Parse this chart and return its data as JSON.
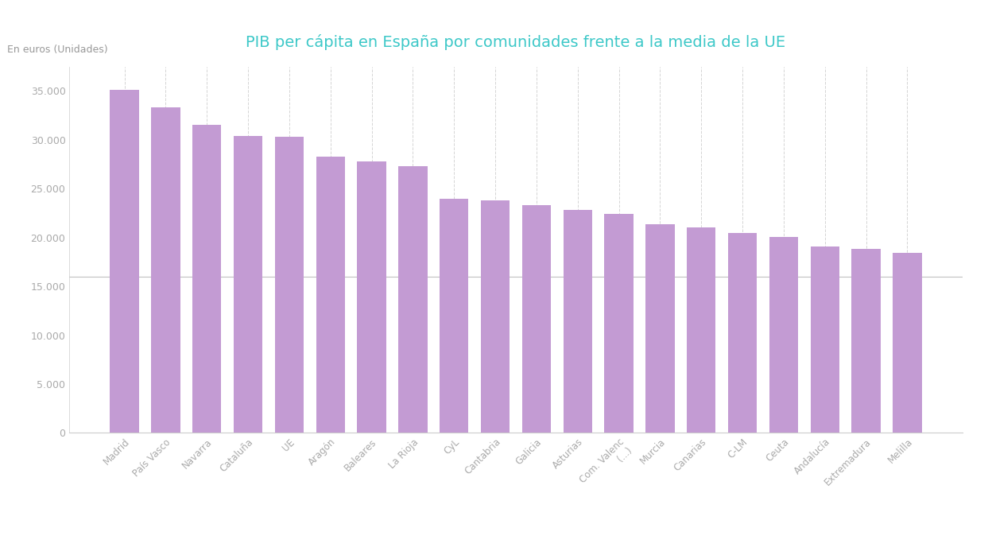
{
  "title": "PIB per cápita en España por comunidades frente a la media de la UE",
  "ylabel_text": "En euros (Unidades)",
  "categories": [
    "Madrid",
    "País Vasco",
    "Navarra",
    "Cataluña",
    "UE",
    "Aragón",
    "Baleares",
    "La Rioja",
    "CyL",
    "Cantabria",
    "Galicia",
    "Asturias",
    "Com. Valenc\n(...)",
    "Murcia",
    "Canarias",
    "C-LM",
    "Ceuta",
    "Andalucía",
    "Extremadura",
    "Melilla"
  ],
  "values": [
    35100,
    33300,
    31500,
    30400,
    30300,
    28300,
    27800,
    27300,
    24000,
    23800,
    23300,
    22800,
    22400,
    21400,
    21000,
    20500,
    20100,
    19100,
    18800,
    18400
  ],
  "bar_color": "#c39bd3",
  "background_color": "#ffffff",
  "title_color": "#3dc8c8",
  "label_color": "#999999",
  "tick_color": "#aaaaaa",
  "grid_color": "#d5d5d5",
  "ylim": [
    0,
    37500
  ],
  "yticks": [
    0,
    5000,
    10000,
    15000,
    20000,
    25000,
    30000,
    35000
  ],
  "hline_y": 16000,
  "hline_color": "#c0c0c0",
  "spine_color": "#cccccc"
}
